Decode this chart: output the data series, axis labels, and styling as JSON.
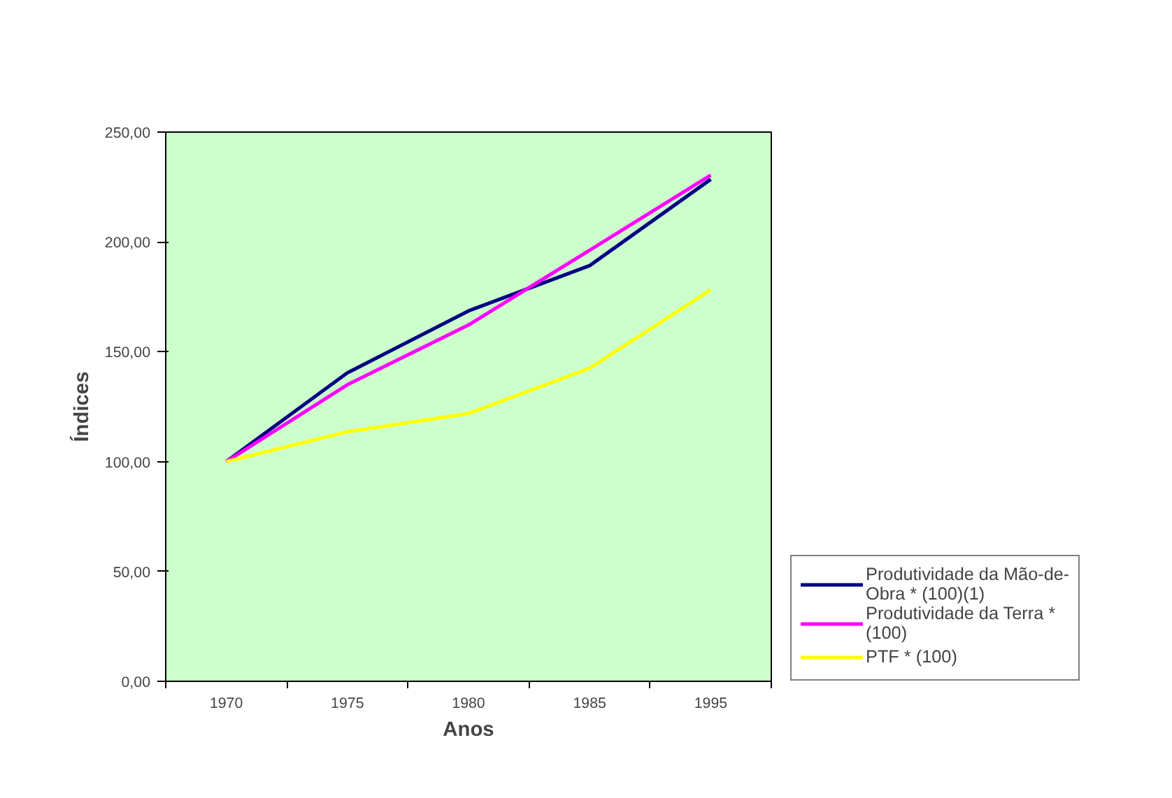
{
  "chart_data": {
    "type": "line",
    "xlabel": "Anos",
    "ylabel": "Índices",
    "categories": [
      "1970",
      "1975",
      "1980",
      "1985",
      "1995"
    ],
    "series": [
      {
        "name": "Produtividade da Mão-de-Obra * (100)(1)",
        "color": "#000080",
        "values": [
          100,
          140.4,
          168.6,
          189.2,
          228.5
        ]
      },
      {
        "name": "Produtividade da Terra * (100)",
        "color": "#ff00ff",
        "values": [
          100,
          135,
          162.2,
          196.2,
          230.4
        ]
      },
      {
        "name": "PTF * (100)",
        "color": "#ffff00",
        "values": [
          100,
          113.6,
          121.9,
          142.5,
          178.2
        ]
      }
    ],
    "ylim": [
      0,
      250
    ],
    "yticks": [
      {
        "value": 0,
        "label": "0,00"
      },
      {
        "value": 50,
        "label": "50,00"
      },
      {
        "value": 100,
        "label": "100,00"
      },
      {
        "value": 150,
        "label": "150,00"
      },
      {
        "value": 200,
        "label": "200,00"
      },
      {
        "value": 250,
        "label": "250,00"
      }
    ],
    "grid": false,
    "legend": "right",
    "marker": "none",
    "line_style": "solid"
  }
}
